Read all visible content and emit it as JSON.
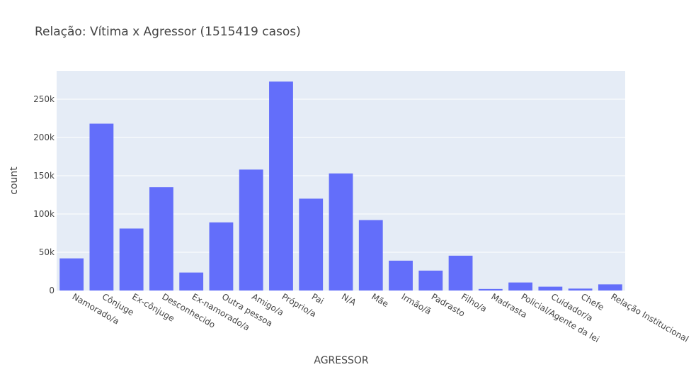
{
  "chart_data": {
    "type": "bar",
    "title": "Relação: Vítima x Agressor (1515419 casos)",
    "xlabel": "AGRESSOR",
    "ylabel": "count",
    "categories": [
      "Namorado/a",
      "Cônjuge",
      "Ex-cônjuge",
      "Desconhecido",
      "Ex-namorado/a",
      "Outra pessoa",
      "Amigo/a",
      "Próprio/a",
      "Pai",
      "N/A",
      "Mãe",
      "Irmão/ã",
      "Padrasto",
      "Filho/a",
      "Madrasta",
      "Policial/Agente da lei",
      "Cuidador/a",
      "Chefe",
      "Relação Institucional"
    ],
    "values": [
      42000,
      218000,
      81000,
      135000,
      23500,
      89000,
      158000,
      273000,
      120000,
      153000,
      92000,
      39000,
      26000,
      45500,
      2000,
      10500,
      5000,
      2500,
      8000
    ],
    "ylim": [
      0,
      287000
    ],
    "yticks": [
      0,
      50000,
      100000,
      150000,
      200000,
      250000
    ],
    "ytick_labels": [
      "0",
      "50k",
      "100k",
      "150k",
      "200k",
      "250k"
    ],
    "grid": true,
    "bar_color": "#636efa",
    "plot_bg": "#e5ecf6"
  }
}
